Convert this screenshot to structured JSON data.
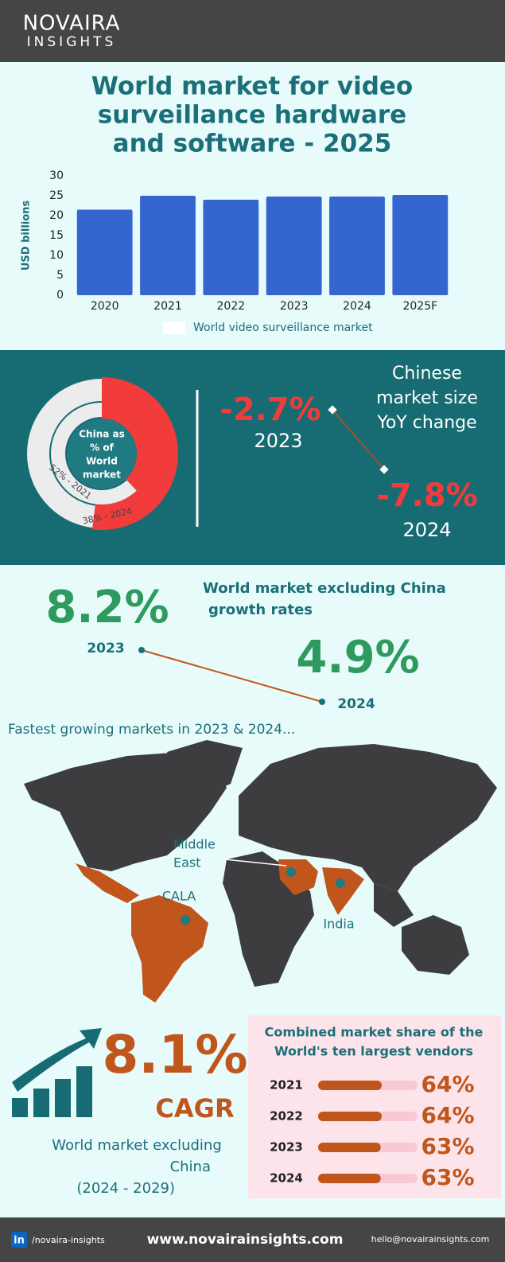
{
  "header": {
    "logo_top": "NOVAIRA",
    "logo_bottom": "INSIGHTS"
  },
  "title": [
    "World market for video",
    "surveillance hardware",
    "and software - 2025"
  ],
  "bar_chart": {
    "type": "bar",
    "y_label": "USD billions",
    "categories": [
      "2020",
      "2021",
      "2022",
      "2023",
      "2024",
      "2025F"
    ],
    "values": [
      21.5,
      25,
      24,
      24.8,
      24.8,
      25.2
    ],
    "color": "#3565cf",
    "ylim": [
      0,
      30
    ],
    "yticks": [
      0,
      5,
      10,
      15,
      20,
      25,
      30
    ],
    "legend": "World video surveillance market"
  },
  "china": {
    "donut_label": [
      "China as",
      "% of",
      "World",
      "market"
    ],
    "rings": [
      {
        "value": 52,
        "label": "52% - 2021"
      },
      {
        "value": 38,
        "label": "38% - 2024"
      }
    ],
    "yoy_title": [
      "Chinese",
      "market size",
      "YoY change"
    ],
    "yoy": [
      {
        "value": "-2.7%",
        "year": "2023"
      },
      {
        "value": "-7.8%",
        "year": "2024"
      }
    ]
  },
  "growth": {
    "title": [
      "World market excluding China",
      "growth rates"
    ],
    "items": [
      {
        "value": "8.2%",
        "year": "2023"
      },
      {
        "value": "4.9%",
        "year": "2024"
      }
    ]
  },
  "map": {
    "title": "Fastest growing markets in 2023 & 2024...",
    "middle_east": [
      "Middle",
      "East"
    ],
    "cala": "CALA",
    "india": "India"
  },
  "cagr": {
    "value": "8.1%",
    "label": "CAGR",
    "desc": [
      "World market excluding",
      "China",
      "(2024 - 2029)"
    ]
  },
  "vendors": {
    "title": [
      "Combined market share of the",
      "World's ten largest vendors"
    ],
    "rows": [
      {
        "year": "2021",
        "value": 64,
        "label": "64%"
      },
      {
        "year": "2022",
        "value": 64,
        "label": "64%"
      },
      {
        "year": "2023",
        "value": 63,
        "label": "63%"
      },
      {
        "year": "2024",
        "value": 63,
        "label": "63%"
      }
    ]
  },
  "footer": {
    "linkedin_icon": "in",
    "linkedin": "/novaira-insights",
    "website": "www.novairainsights.com",
    "email": "hello@novairainsights.com"
  }
}
